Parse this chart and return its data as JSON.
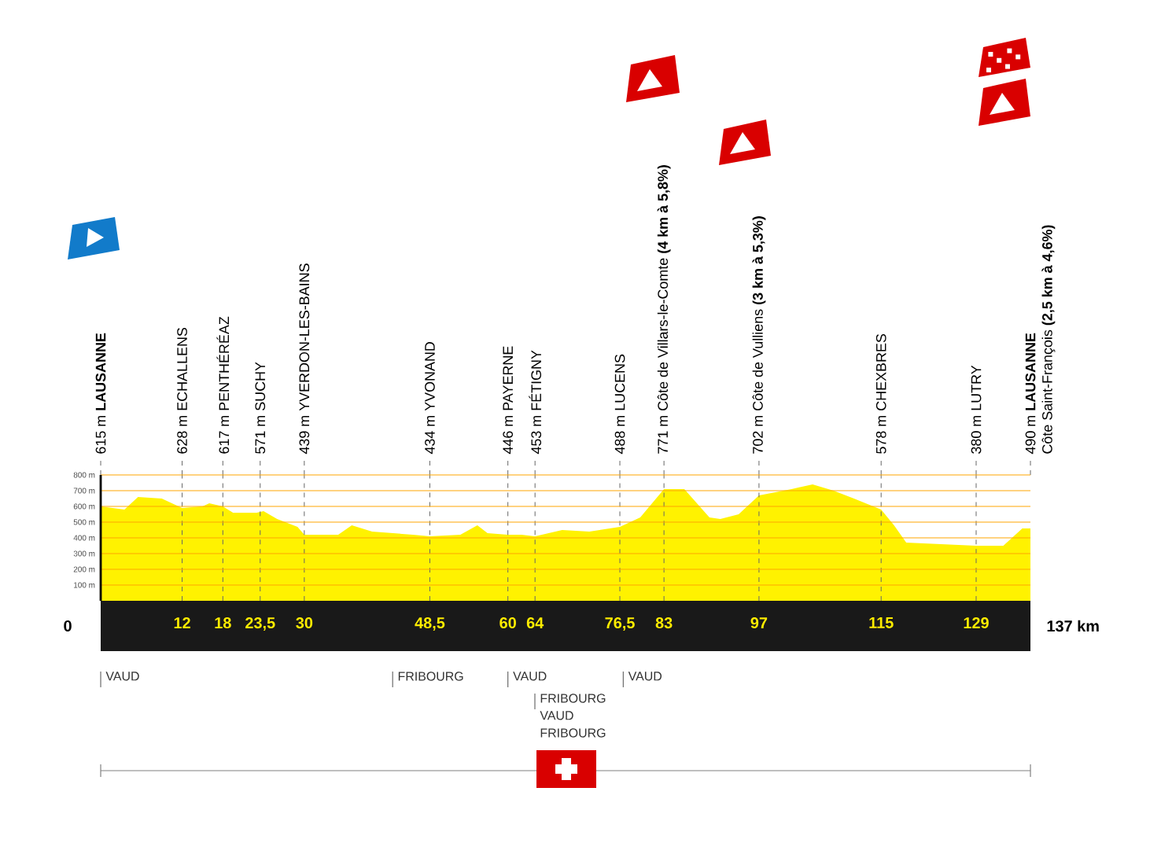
{
  "chart_data": {
    "type": "area",
    "color": "#fff200",
    "x": [
      0,
      3.5,
      5.5,
      9,
      12,
      15,
      16,
      18,
      19.5,
      23,
      24,
      26,
      29,
      30,
      35,
      37,
      40,
      46,
      48.5,
      53,
      55.5,
      57,
      60,
      62,
      64,
      68,
      72,
      76.5,
      79.5,
      83,
      86,
      89.7,
      91.3,
      94,
      97,
      101.8,
      104.9,
      108,
      111,
      115,
      116.9,
      118.7,
      129,
      133,
      135.8,
      137
    ],
    "values": [
      600,
      580,
      660,
      650,
      590,
      600,
      620,
      600,
      560,
      560,
      570,
      520,
      470,
      420,
      420,
      480,
      440,
      420,
      410,
      420,
      480,
      430,
      420,
      420,
      410,
      450,
      440,
      470,
      530,
      710,
      710,
      530,
      520,
      550,
      670,
      710,
      740,
      700,
      650,
      580,
      480,
      370,
      350,
      350,
      460,
      460
    ],
    "xlim": [
      0,
      137
    ],
    "ylim": [
      0,
      800
    ],
    "xticks": [
      12,
      18,
      {
        "value": 23.5,
        "label": "23,5"
      },
      30,
      {
        "value": 48.5,
        "label": "48,5"
      },
      60,
      64,
      {
        "value": 76.5,
        "label": "76,5"
      },
      83,
      97,
      115,
      129
    ],
    "yticks": [
      {
        "value": 100,
        "label": "100 m"
      },
      {
        "value": 200,
        "label": "200 m"
      },
      {
        "value": 300,
        "label": "300 m"
      },
      {
        "value": 400,
        "label": "400 m"
      },
      {
        "value": 500,
        "label": "500 m"
      },
      {
        "value": 600,
        "label": "600 m"
      },
      {
        "value": 700,
        "label": "700 m"
      },
      {
        "value": 800,
        "label": "800 m"
      }
    ],
    "grid": true,
    "annotations": [
      "0",
      "137 km",
      "615 m **LAUSANNE**",
      "628 m ECHALLENS",
      "617 m PENTHÉRÉAZ",
      "571 m SUCHY",
      "439 m YVERDON-LES-BAINS",
      "434 m YVONAND",
      "446 m PAYERNE",
      "453 m FÉTIGNY",
      "488 m LUCENS",
      "771 m Côte de Villars-le-Comte **(4 km à 5,8%)**",
      "702 m Côte de Vulliens **(3 km à 5,3%)**",
      "578 m CHEXBRES",
      "380 m LUTRY",
      "490 m **LAUSANNE**",
      "Côte Saint-François **(2,5 km à 4,6%)**",
      "VAUD",
      "FRIBOURG",
      "VAUD",
      "FRIBOURG",
      "VAUD",
      "FRIBOURG",
      "VAUD"
    ]
  }
}
